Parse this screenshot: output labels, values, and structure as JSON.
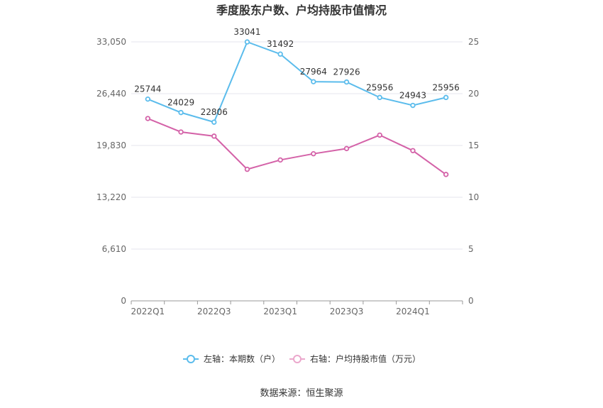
{
  "chart_data": {
    "type": "line",
    "title": "季度股东户数、户均持股市值情况",
    "categories": [
      "2022Q1",
      "2022Q2",
      "2022Q3",
      "2022Q4",
      "2023Q1",
      "2023Q2",
      "2023Q3",
      "2023Q4",
      "2024Q1",
      "2024Q2"
    ],
    "x_tick_labels": [
      "2022Q1",
      "2022Q3",
      "2023Q1",
      "2023Q3",
      "2024Q1"
    ],
    "y_left": {
      "ticks": [
        "0",
        "6,610",
        "13,220",
        "19,830",
        "26,440",
        "33,050"
      ],
      "range": [
        0,
        33050
      ]
    },
    "y_right": {
      "ticks": [
        "0",
        "5",
        "10",
        "15",
        "20",
        "25"
      ],
      "range": [
        0,
        25
      ]
    },
    "series": [
      {
        "name": "左轴：本期数（户）",
        "axis": "left",
        "color": "#5bbcec",
        "values": [
          25744,
          24029,
          22806,
          33041,
          31492,
          27964,
          27926,
          25956,
          24943,
          25956
        ],
        "labels": [
          "25744",
          "24029",
          "22806",
          "33041",
          "31492",
          "27964",
          "27926",
          "25956",
          "24943",
          "25956"
        ]
      },
      {
        "name": "右轴：户均持股市值（万元）",
        "axis": "right",
        "color": "#d462a8",
        "values": [
          17.6,
          16.3,
          15.9,
          12.7,
          13.6,
          14.2,
          14.7,
          16.0,
          14.5,
          12.2
        ]
      }
    ],
    "grid": true,
    "legend_position": "bottom"
  },
  "source": "数据来源：恒生聚源"
}
